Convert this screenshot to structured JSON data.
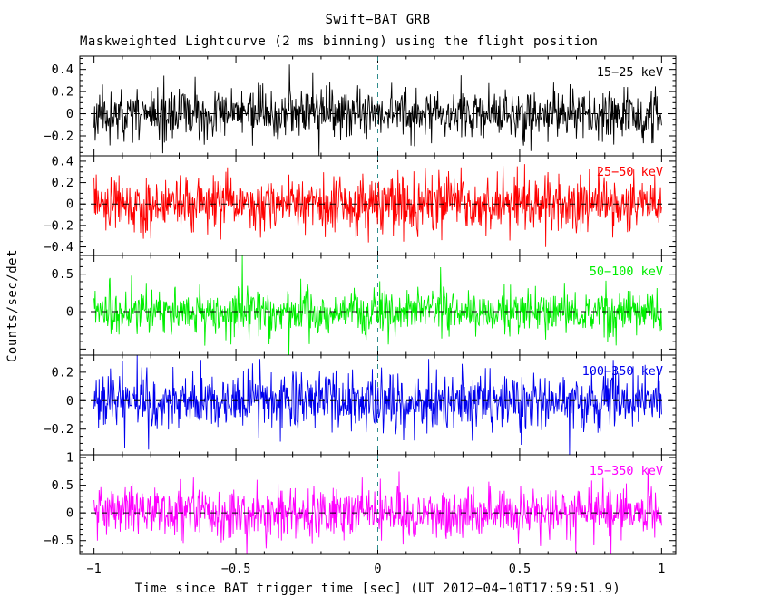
{
  "chart_data": {
    "type": "line",
    "title": "Swift−BAT GRB",
    "subtitle": "Maskweighted Lightcurve (2 ms binning) using the flight position",
    "xlabel": "Time since BAT trigger time [sec] (UT 2012−04−10T17:59:51.9)",
    "ylabel": "Counts/sec/det",
    "x_range": [
      -1,
      1
    ],
    "x_view": [
      -1.05,
      1.05
    ],
    "x_ticks": [
      -1,
      -0.5,
      0,
      0.5,
      1
    ],
    "x_minor_step": 0.1,
    "bin_seconds": 0.002,
    "n_bins": 1000,
    "grid": "off",
    "legend": "per-panel inline labels, top right, colored as trace",
    "zero_line": {
      "style": "dashed",
      "color": "#000000"
    },
    "trigger_line": {
      "x": 0,
      "style": "dashed",
      "color": "#2e8b8b"
    },
    "description": "Five stacked panels of mask-weighted, background-subtracted BAT count rates vs time. All panels show zero-mean noise at ~2ms binning with no obvious burst structure; dashed horizontal line marks zero counts, dashed vertical line marks the trigger time t=0.",
    "panels": [
      {
        "label": "15−25 keV",
        "color": "#000000",
        "ylim": [
          -0.38,
          0.52
        ],
        "yticks": [
          -0.2,
          0,
          0.2,
          0.4
        ],
        "y_minor_step": 0.05,
        "mean": 0,
        "noise_sigma": 0.11,
        "seed": 11
      },
      {
        "label": "25−50 keV",
        "color": "#ff0000",
        "ylim": [
          -0.48,
          0.45
        ],
        "yticks": [
          -0.4,
          -0.2,
          0,
          0.2,
          0.4
        ],
        "y_minor_step": 0.05,
        "mean": 0,
        "noise_sigma": 0.125,
        "seed": 23
      },
      {
        "label": "50−100 keV",
        "color": "#00ee00",
        "ylim": [
          -0.58,
          0.75
        ],
        "yticks": [
          0,
          0.5
        ],
        "extra_major_ticks": [
          -0.5
        ],
        "y_minor_step": 0.1,
        "mean": 0,
        "noise_sigma": 0.155,
        "seed": 37
      },
      {
        "label": "100−350 keV",
        "color": "#0000ee",
        "ylim": [
          -0.38,
          0.32
        ],
        "yticks": [
          -0.2,
          0,
          0.2
        ],
        "y_minor_step": 0.05,
        "mean": 0,
        "noise_sigma": 0.1,
        "seed": 41
      },
      {
        "label": "15−350 keV",
        "color": "#ff00ff",
        "ylim": [
          -0.75,
          1.05
        ],
        "yticks": [
          -0.5,
          0,
          0.5,
          1
        ],
        "y_minor_step": 0.1,
        "mean": 0,
        "noise_sigma": 0.23,
        "seed": 53
      }
    ]
  }
}
